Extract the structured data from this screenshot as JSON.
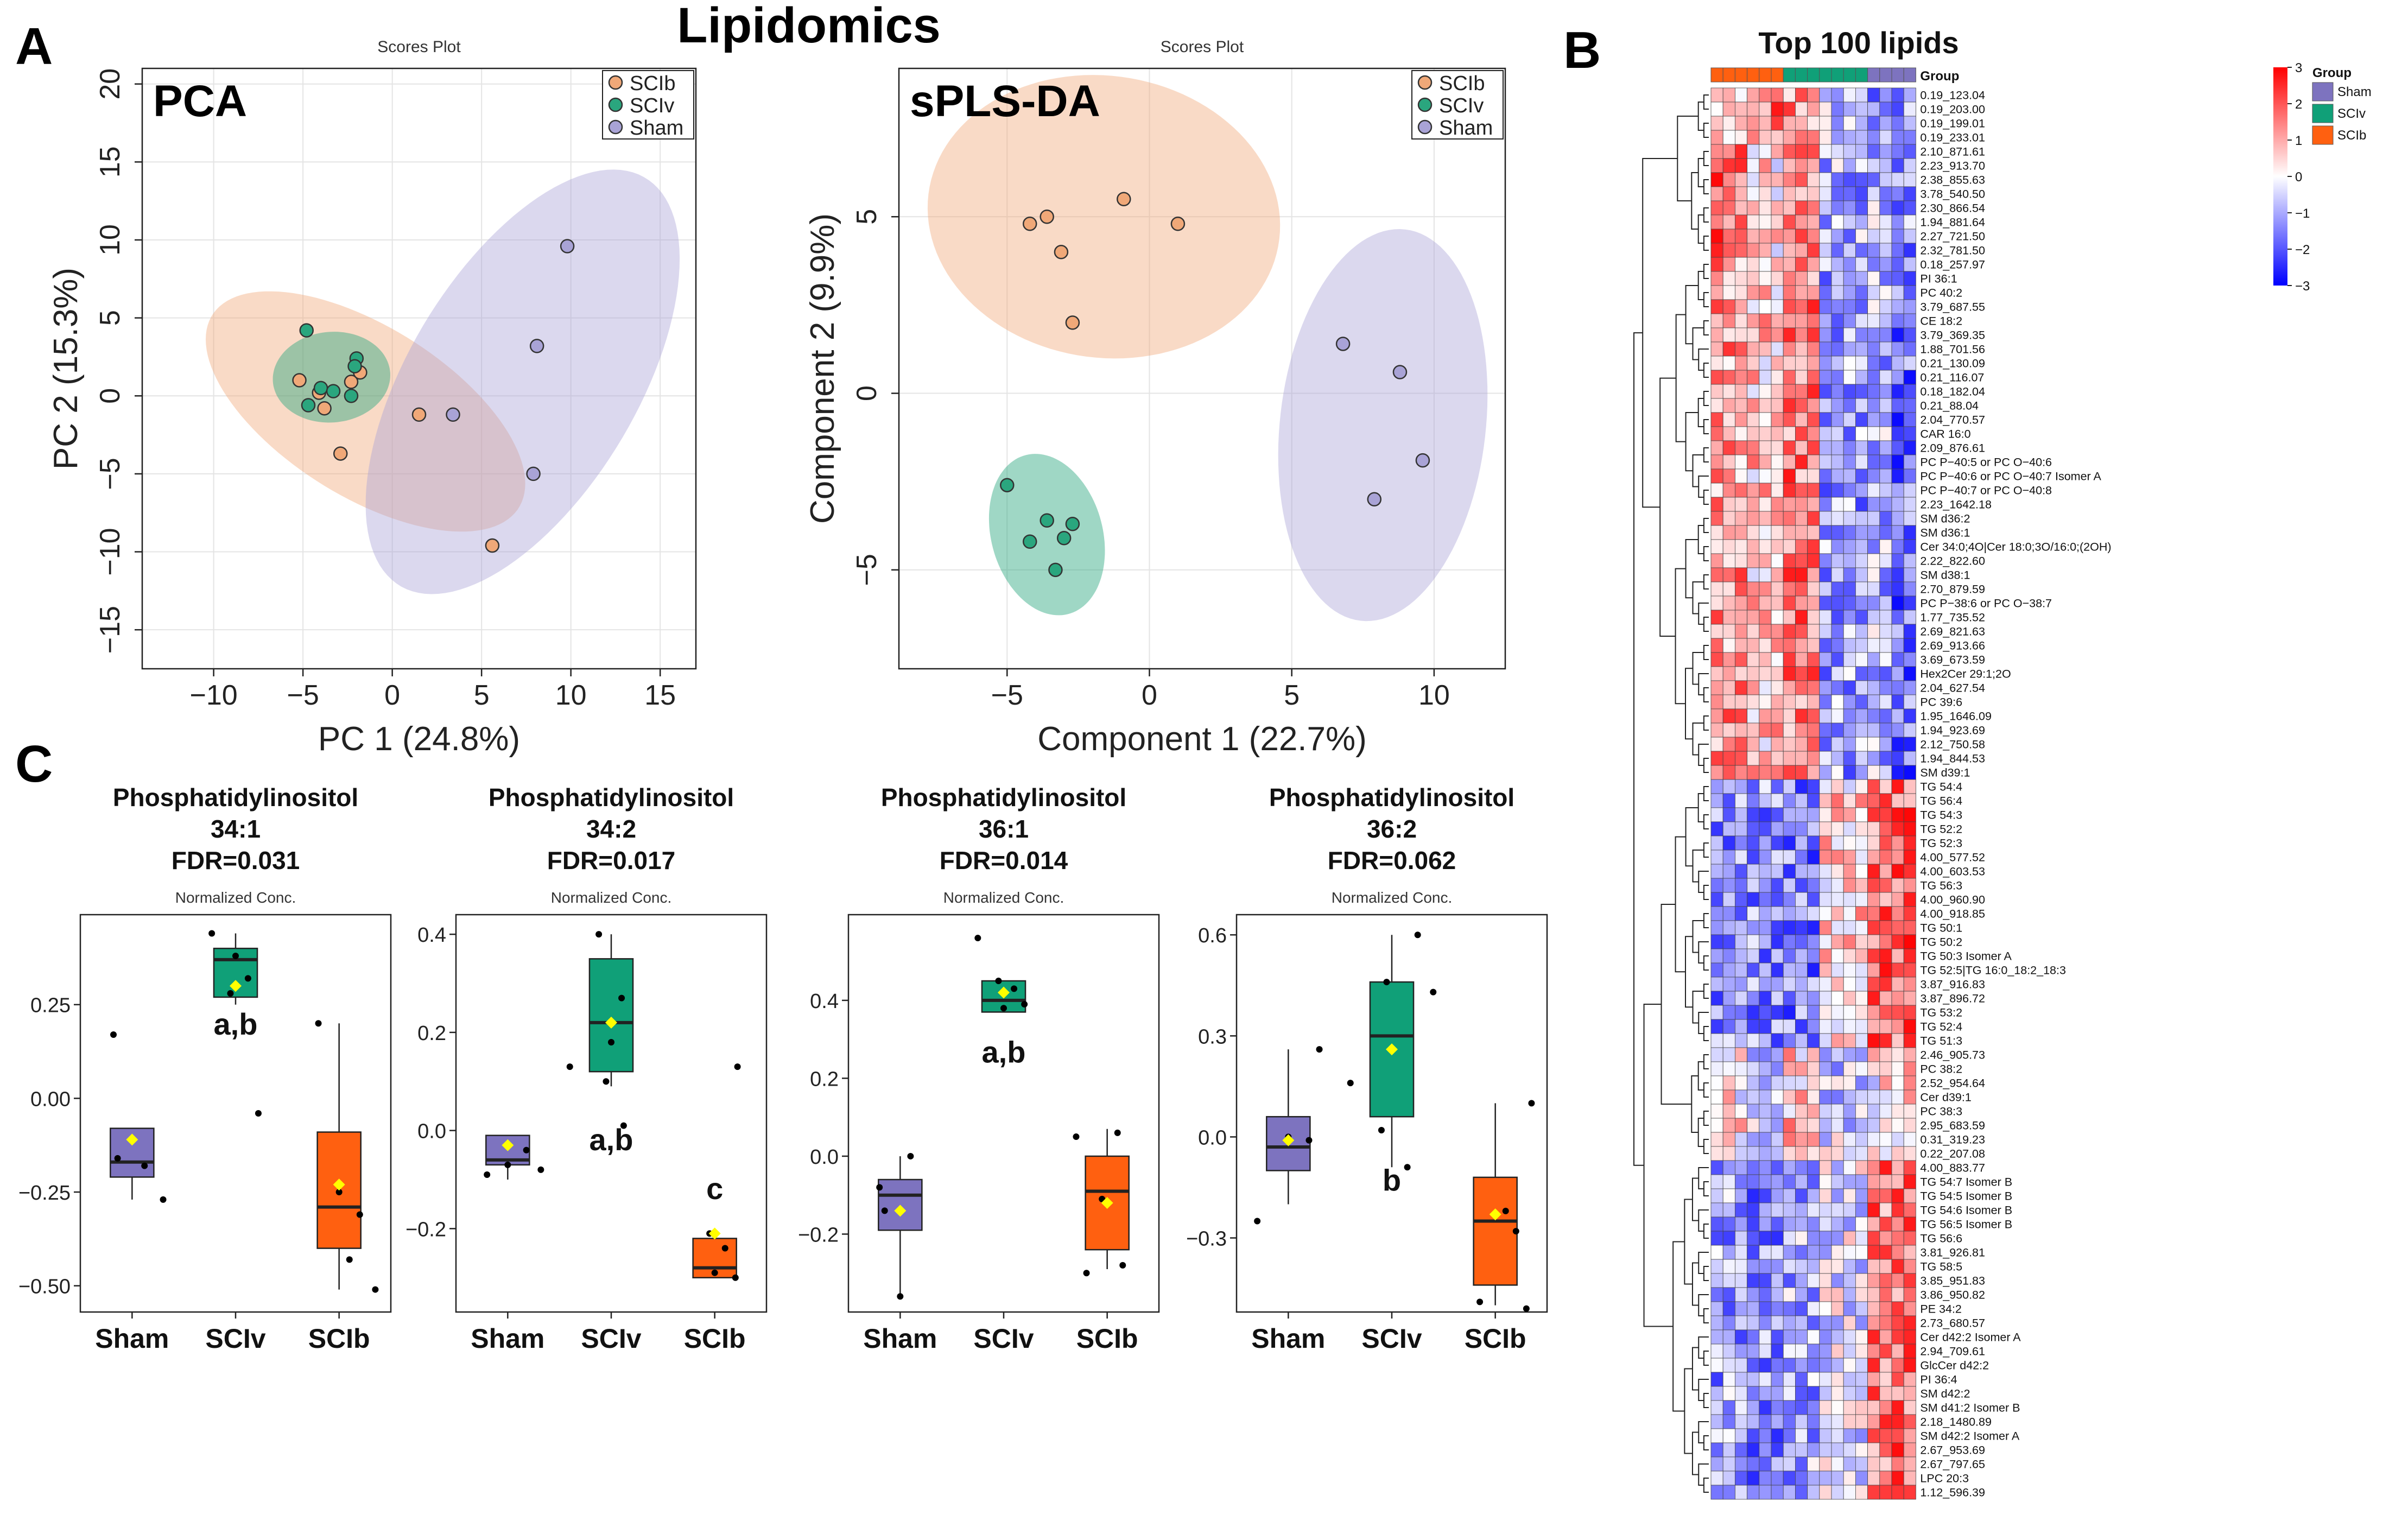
{
  "figure_title": "Lipidomics",
  "panel_letters": {
    "a": "A",
    "b": "B",
    "c": "C"
  },
  "colors": {
    "SCIb": "#f0a878",
    "SCIv": "#2aa67e",
    "Sham": "#a9a3d6",
    "box_SCIb": "#ff6010",
    "box_SCIv": "#10a078",
    "box_Sham": "#7d73bf",
    "mean": "#ffff00",
    "heat_high": "#ff0000",
    "heat_low": "#0000ff",
    "heat_mid": "#ffffff"
  },
  "chart_data": [
    {
      "id": "pca",
      "type": "scatter",
      "subtitle": "Scores Plot",
      "title": "PCA",
      "xlabel": "PC 1 (24.8%)",
      "ylabel": "PC 2 (15.3%)",
      "xlim": [
        -14,
        17
      ],
      "ylim": [
        -17.5,
        21
      ],
      "xticks": [
        -10,
        -5,
        0,
        5,
        10,
        15
      ],
      "yticks": [
        -15,
        -10,
        -5,
        0,
        5,
        10,
        15,
        20
      ],
      "xtick_labels": [
        "−10",
        "−5",
        "0",
        "5",
        "10",
        "15"
      ],
      "ytick_labels": [
        "−15",
        "−10",
        "−5",
        "0",
        "5",
        "10",
        "15",
        "20"
      ],
      "legend": [
        "SCIb",
        "SCIv",
        "Sham"
      ],
      "series": [
        {
          "name": "SCIb",
          "points": [
            [
              -5.2,
              1.0
            ],
            [
              -2.3,
              0.9
            ],
            [
              -1.8,
              1.5
            ],
            [
              -4.1,
              0.2
            ],
            [
              -3.8,
              -0.8
            ],
            [
              -2.9,
              -3.7
            ],
            [
              1.5,
              -1.2
            ],
            [
              5.6,
              -9.6
            ]
          ]
        },
        {
          "name": "SCIv",
          "points": [
            [
              -4.8,
              4.2
            ],
            [
              -2.0,
              2.4
            ],
            [
              -2.1,
              1.9
            ],
            [
              -4.0,
              0.5
            ],
            [
              -3.3,
              0.3
            ],
            [
              -2.3,
              0.0
            ],
            [
              -4.7,
              -0.6
            ]
          ]
        },
        {
          "name": "Sham",
          "points": [
            [
              9.8,
              9.6
            ],
            [
              8.1,
              3.2
            ],
            [
              3.4,
              -1.2
            ],
            [
              7.9,
              -5.0
            ]
          ]
        }
      ],
      "ellipses": [
        {
          "name": "SCIb",
          "center": [
            -1.5,
            -1.0
          ],
          "semi_major": 10.6,
          "semi_minor": 5.2,
          "angle_deg": -38
        },
        {
          "name": "SCIv",
          "center": [
            -3.4,
            1.2
          ],
          "semi_major": 3.3,
          "semi_minor": 2.9,
          "angle_deg": 10
        },
        {
          "name": "Sham",
          "center": [
            7.3,
            0.9
          ],
          "semi_major": 14.8,
          "semi_minor": 6.6,
          "angle_deg": 64
        }
      ]
    },
    {
      "id": "splsda",
      "type": "scatter",
      "subtitle": "Scores Plot",
      "title": "sPLS-DA",
      "xlabel": "Component 1 (22.7%)",
      "ylabel": "Component 2 (9.9%)",
      "xlim": [
        -8.8,
        12.5
      ],
      "ylim": [
        -7.8,
        9.2
      ],
      "xticks": [
        -5,
        0,
        5,
        10
      ],
      "yticks": [
        -5,
        0,
        5
      ],
      "xtick_labels": [
        "−5",
        "0",
        "5",
        "10"
      ],
      "ytick_labels": [
        "−5",
        "0",
        "5"
      ],
      "legend": [
        "SCIb",
        "SCIv",
        "Sham"
      ],
      "series": [
        {
          "name": "SCIb",
          "points": [
            [
              -4.2,
              4.8
            ],
            [
              -3.6,
              5.0
            ],
            [
              -0.9,
              5.5
            ],
            [
              1.0,
              4.8
            ],
            [
              -3.1,
              4.0
            ],
            [
              -2.7,
              2.0
            ]
          ]
        },
        {
          "name": "SCIv",
          "points": [
            [
              -5.0,
              -2.6
            ],
            [
              -3.6,
              -3.6
            ],
            [
              -2.7,
              -3.7
            ],
            [
              -4.2,
              -4.2
            ],
            [
              -3.0,
              -4.1
            ],
            [
              -3.3,
              -5.0
            ]
          ]
        },
        {
          "name": "Sham",
          "points": [
            [
              6.8,
              1.4
            ],
            [
              8.8,
              0.6
            ],
            [
              7.9,
              -3.0
            ],
            [
              9.6,
              -1.9
            ]
          ]
        }
      ],
      "ellipses": [
        {
          "name": "SCIb",
          "center": [
            -1.6,
            5.0
          ],
          "semi_major": 6.2,
          "semi_minor": 4.0,
          "angle_deg": -4
        },
        {
          "name": "SCIv",
          "center": [
            -3.6,
            -4.0
          ],
          "semi_major": 2.4,
          "semi_minor": 1.9,
          "angle_deg": -60
        },
        {
          "name": "Sham",
          "center": [
            8.2,
            -0.9
          ],
          "semi_major": 5.6,
          "semi_minor": 3.6,
          "angle_deg": 80
        }
      ]
    },
    {
      "id": "pi_34_1",
      "type": "box",
      "title_lines": [
        "Phosphatidylinositol",
        "34:1",
        "FDR=0.031"
      ],
      "subtitle": "Normalized Conc.",
      "categories": [
        "Sham",
        "SCIv",
        "SCIb"
      ],
      "ylim": [
        -0.57,
        0.49
      ],
      "yticks": [
        -0.5,
        -0.25,
        0,
        0.25
      ],
      "ytick_labels": [
        "−0.50",
        "−0.25",
        "0.00",
        "0.25"
      ],
      "boxes": [
        {
          "min": -0.27,
          "q1": -0.21,
          "median": -0.17,
          "q3": -0.08,
          "max": -0.08,
          "mean": -0.11
        },
        {
          "min": 0.25,
          "q1": 0.27,
          "median": 0.37,
          "q3": 0.4,
          "max": 0.44,
          "mean": 0.3
        },
        {
          "min": -0.51,
          "q1": -0.4,
          "median": -0.29,
          "q3": -0.09,
          "max": 0.2,
          "mean": -0.23
        }
      ],
      "points": [
        [
          [
            -0.18,
            0.17
          ],
          [
            -0.14,
            -0.16
          ],
          [
            0.12,
            -0.18
          ],
          [
            0.3,
            -0.27
          ]
        ],
        [
          [
            -0.23,
            0.44
          ],
          [
            0.0,
            0.38
          ],
          [
            0.12,
            0.32
          ],
          [
            -0.05,
            0.28
          ],
          [
            0.22,
            -0.04
          ]
        ],
        [
          [
            -0.2,
            0.2
          ],
          [
            0.0,
            -0.25
          ],
          [
            0.2,
            -0.31
          ],
          [
            0.1,
            -0.43
          ],
          [
            0.35,
            -0.51
          ]
        ]
      ],
      "annotations": [
        {
          "category": "SCIv",
          "text": "a,b",
          "y": 0.17
        }
      ]
    },
    {
      "id": "pi_34_2",
      "type": "box",
      "title_lines": [
        "Phosphatidylinositol",
        "34:2",
        "FDR=0.017"
      ],
      "subtitle": "Normalized Conc.",
      "categories": [
        "Sham",
        "SCIv",
        "SCIb"
      ],
      "ylim": [
        -0.37,
        0.44
      ],
      "yticks": [
        -0.2,
        0,
        0.2,
        0.4
      ],
      "ytick_labels": [
        "−0.2",
        "0.0",
        "0.2",
        "0.4"
      ],
      "boxes": [
        {
          "min": -0.1,
          "q1": -0.07,
          "median": -0.06,
          "q3": -0.01,
          "max": -0.01,
          "mean": -0.03
        },
        {
          "min": 0.09,
          "q1": 0.12,
          "median": 0.22,
          "q3": 0.35,
          "max": 0.4,
          "mean": 0.22
        },
        {
          "min": -0.3,
          "q1": -0.3,
          "median": -0.28,
          "q3": -0.22,
          "max": -0.2,
          "mean": -0.21
        },
        {
          "spacer": true
        }
      ],
      "points": [
        [
          [
            -0.2,
            -0.09
          ],
          [
            0.0,
            -0.07
          ],
          [
            0.18,
            -0.04
          ],
          [
            0.32,
            -0.08
          ]
        ],
        [
          [
            -0.4,
            0.13
          ],
          [
            -0.12,
            0.4
          ],
          [
            0.1,
            0.27
          ],
          [
            0.0,
            0.18
          ],
          [
            -0.05,
            0.1
          ],
          [
            0.12,
            0.01
          ]
        ],
        [
          [
            -0.05,
            -0.21
          ],
          [
            0.1,
            -0.24
          ],
          [
            0.2,
            -0.3
          ],
          [
            0.0,
            -0.29
          ],
          [
            0.22,
            0.13
          ]
        ]
      ],
      "annotations": [
        {
          "category": "SCIv",
          "text": "a,b",
          "y": -0.04
        },
        {
          "category": "SCIb",
          "text": "c",
          "y": -0.14
        }
      ]
    },
    {
      "id": "pi_36_1",
      "type": "box",
      "title_lines": [
        "Phosphatidylinositol",
        "36:1",
        "FDR=0.014"
      ],
      "subtitle": "Normalized Conc.",
      "categories": [
        "Sham",
        "SCIv",
        "SCIb"
      ],
      "ylim": [
        -0.4,
        0.62
      ],
      "yticks": [
        -0.2,
        0,
        0.2,
        0.4
      ],
      "ytick_labels": [
        "−0.2",
        "0.0",
        "0.2",
        "0.4"
      ],
      "boxes": [
        {
          "min": -0.36,
          "q1": -0.19,
          "median": -0.1,
          "q3": -0.06,
          "max": 0.0,
          "mean": -0.14
        },
        {
          "min": 0.37,
          "q1": 0.37,
          "median": 0.4,
          "q3": 0.45,
          "max": 0.45,
          "mean": 0.42
        },
        {
          "min": -0.29,
          "q1": -0.24,
          "median": -0.09,
          "q3": 0.0,
          "max": 0.07,
          "mean": -0.12
        }
      ],
      "points": [
        [
          [
            -0.2,
            -0.08
          ],
          [
            0.1,
            0.0
          ],
          [
            -0.15,
            -0.14
          ],
          [
            0.0,
            -0.36
          ]
        ],
        [
          [
            -0.25,
            0.56
          ],
          [
            -0.05,
            0.45
          ],
          [
            0.1,
            0.43
          ],
          [
            0.2,
            0.39
          ],
          [
            0.0,
            0.38
          ]
        ],
        [
          [
            -0.3,
            0.05
          ],
          [
            0.1,
            0.06
          ],
          [
            -0.05,
            -0.11
          ],
          [
            0.15,
            -0.28
          ],
          [
            -0.2,
            -0.3
          ]
        ]
      ],
      "annotations": [
        {
          "category": "SCIv",
          "text": "a,b",
          "y": 0.24
        }
      ]
    },
    {
      "id": "pi_36_2",
      "type": "box",
      "title_lines": [
        "Phosphatidylinositol",
        "36:2",
        "FDR=0.062"
      ],
      "subtitle": "Normalized Conc.",
      "categories": [
        "Sham",
        "SCIv",
        "SCIb"
      ],
      "ylim": [
        -0.52,
        0.66
      ],
      "yticks": [
        -0.3,
        0,
        0.3,
        0.6
      ],
      "ytick_labels": [
        "−0.3",
        "0.0",
        "0.3",
        "0.6"
      ],
      "boxes": [
        {
          "min": -0.2,
          "q1": -0.1,
          "median": -0.03,
          "q3": 0.06,
          "max": 0.26,
          "mean": -0.01
        },
        {
          "min": -0.09,
          "q1": 0.06,
          "median": 0.3,
          "q3": 0.46,
          "max": 0.6,
          "mean": 0.26
        },
        {
          "min": -0.5,
          "q1": -0.44,
          "median": -0.25,
          "q3": -0.12,
          "max": 0.1,
          "mean": -0.23
        }
      ],
      "points": [
        [
          [
            -0.3,
            -0.25
          ],
          [
            0.0,
            0.0
          ],
          [
            0.2,
            -0.01
          ],
          [
            0.3,
            0.26
          ]
        ],
        [
          [
            -0.4,
            0.16
          ],
          [
            -0.05,
            0.46
          ],
          [
            0.4,
            0.43
          ],
          [
            0.25,
            0.6
          ],
          [
            0.15,
            -0.09
          ],
          [
            -0.1,
            0.02
          ]
        ],
        [
          [
            -0.15,
            -0.49
          ],
          [
            0.1,
            -0.22
          ],
          [
            0.2,
            -0.28
          ],
          [
            0.3,
            -0.51
          ],
          [
            0.35,
            0.1
          ]
        ]
      ],
      "annotations": [
        {
          "category": "SCIv",
          "text": "b",
          "y": -0.16
        }
      ]
    },
    {
      "id": "heatmap",
      "type": "heatmap",
      "title": "Top 100 lipids",
      "column_groups": [
        "SCIb",
        "SCIb",
        "SCIb",
        "SCIb",
        "SCIb",
        "SCIb",
        "SCIv",
        "SCIv",
        "SCIv",
        "SCIv",
        "SCIv",
        "SCIv",
        "SCIv",
        "Sham",
        "Sham",
        "Sham",
        "Sham"
      ],
      "group_header": "Group",
      "legend_title": "Group",
      "legend_groups": [
        "Sham",
        "SCIv",
        "SCIb"
      ],
      "scale_ticks": [
        3,
        2,
        1,
        0,
        -1,
        -2,
        -3
      ],
      "scale_labels": [
        "3",
        "2",
        "1",
        "0",
        "−1",
        "−2",
        "−3"
      ],
      "rows": [
        "0.19_123.04",
        "0.19_203.00",
        "0.19_199.01",
        "0.19_233.01",
        "2.10_871.61",
        "2.23_913.70",
        "2.38_855.63",
        "3.78_540.50",
        "2.30_866.54",
        "1.94_881.64",
        "2.27_721.50",
        "2.32_781.50",
        "0.18_257.97",
        "PI 36:1",
        "PC 40:2",
        "3.79_687.55",
        "CE 18:2",
        "3.79_369.35",
        "1.88_701.56",
        "0.21_130.09",
        "0.21_116.07",
        "0.18_182.04",
        "0.21_88.04",
        "2.04_770.57",
        "CAR 16:0",
        "2.09_876.61",
        "PC P−40:5 or PC O−40:6",
        "PC P−40:6 or PC O−40:7 Isomer A",
        "PC P−40:7 or PC O−40:8",
        "2.23_1642.18",
        "SM d36:2",
        "SM d36:1",
        "Cer 34:0;4O|Cer 18:0;3O/16:0;(2OH)",
        "2.22_822.60",
        "SM d38:1",
        "2.70_879.59",
        "PC P−38:6 or PC O−38:7",
        "1.77_735.52",
        "2.69_821.63",
        "2.69_913.66",
        "3.69_673.59",
        "Hex2Cer 29:1;2O",
        "2.04_627.54",
        "PC 39:6",
        "1.95_1646.09",
        "1.94_923.69",
        "2.12_750.58",
        "1.94_844.53",
        "SM d39:1",
        "TG 54:4",
        "TG 56:4",
        "TG 54:3",
        "TG 52:2",
        "TG 52:3",
        "4.00_577.52",
        "4.00_603.53",
        "TG 56:3",
        "4.00_960.90",
        "4.00_918.85",
        "TG 50:1",
        "TG 50:2",
        "TG 50:3 Isomer A",
        "TG 52:5|TG 16:0_18:2_18:3",
        "3.87_916.83",
        "3.87_896.72",
        "TG 53:2",
        "TG 52:4",
        "TG 51:3",
        "2.46_905.73",
        "PC 38:2",
        "2.52_954.64",
        "Cer d39:1",
        "PC 38:3",
        "2.95_683.59",
        "0.31_319.23",
        "0.22_207.08",
        "4.00_883.77",
        "TG 54:7 Isomer B",
        "TG 54:5 Isomer B",
        "TG 54:6 Isomer B",
        "TG 56:5 Isomer B",
        "TG 56:6",
        "3.81_926.81",
        "TG 58:5",
        "3.85_951.83",
        "3.86_950.82",
        "PE 34:2",
        "2.73_680.57",
        "Cer d42:2 Isomer A",
        "2.94_709.61",
        "GlcCer d42:2",
        "PI 36:4",
        "SM d42:2",
        "SM d41:2 Isomer B",
        "2.18_1480.89",
        "SM d42:2 Isomer A",
        "2.67_953.69",
        "2.67_797.65",
        "LPC 20:3",
        "1.12_596.39"
      ],
      "row_pattern": {
        "block_ends": [
          4,
          12,
          49,
          68,
          76,
          100
        ],
        "block_profiles": [
          [
            0.6,
            1.2,
            0.9,
            -0.6,
            -0.9,
            -1.0
          ],
          [
            1.4,
            0.3,
            0.8,
            -0.7,
            -0.5,
            -0.9
          ],
          [
            0.9,
            0.5,
            1.1,
            -0.8,
            -0.6,
            -1.2
          ],
          [
            -1.0,
            -0.9,
            -1.1,
            0.4,
            1.2,
            1.3
          ],
          [
            0.2,
            -0.3,
            0.5,
            -0.4,
            0.1,
            0.3
          ],
          [
            -0.8,
            -1.0,
            -0.7,
            -0.2,
            1.1,
            1.2
          ]
        ]
      }
    }
  ]
}
